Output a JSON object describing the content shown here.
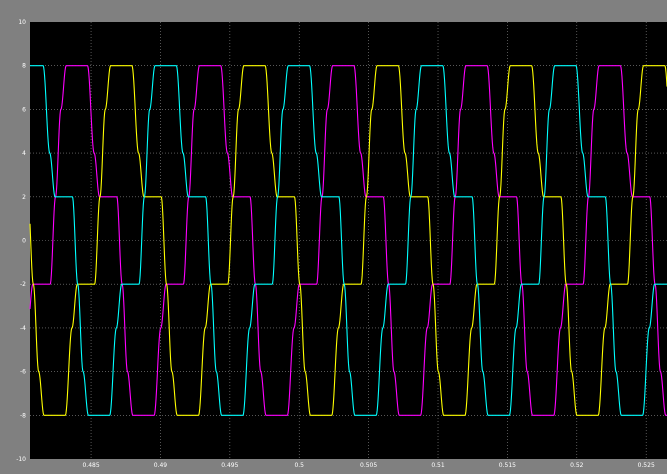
{
  "window": {
    "background": "#808080",
    "plot_background": "#000000",
    "grid_color": "#8c8c8c"
  },
  "chart_data": {
    "type": "line",
    "xlim": [
      0.4806,
      0.5265
    ],
    "ylim": [
      -10,
      10
    ],
    "grid": true,
    "xticks": [
      {
        "value": 0.485,
        "label": "0.485"
      },
      {
        "value": 0.49,
        "label": "0.49"
      },
      {
        "value": 0.495,
        "label": "0.495"
      },
      {
        "value": 0.5,
        "label": "0.5"
      },
      {
        "value": 0.505,
        "label": "0.505"
      },
      {
        "value": 0.51,
        "label": "0.51"
      },
      {
        "value": 0.515,
        "label": "0.515"
      },
      {
        "value": 0.52,
        "label": "0.52"
      },
      {
        "value": 0.525,
        "label": "0.525"
      }
    ],
    "yticks": [
      {
        "value": 10,
        "label": "10"
      },
      {
        "value": 8,
        "label": "8"
      },
      {
        "value": 6,
        "label": "6"
      },
      {
        "value": 4,
        "label": "4"
      },
      {
        "value": 2,
        "label": "2"
      },
      {
        "value": 0,
        "label": "0"
      },
      {
        "value": -2,
        "label": "-2"
      },
      {
        "value": -4,
        "label": "-4"
      },
      {
        "value": -6,
        "label": "-6"
      },
      {
        "value": -8,
        "label": "-8"
      },
      {
        "value": -10,
        "label": "-10"
      }
    ],
    "period": 0.0096,
    "series": [
      {
        "color": "#ff00ff",
        "phase": 0.4834
      },
      {
        "color": "#ffff00",
        "phase": 0.4866
      },
      {
        "color": "#00ffff",
        "phase": 0.4898
      }
    ],
    "waveform": [
      {
        "p": 0.0,
        "v": 8
      },
      {
        "p": 0.14,
        "v": 8
      },
      {
        "p": 0.19,
        "v": 4
      },
      {
        "p": 0.23,
        "v": 2
      },
      {
        "p": 0.36,
        "v": 2
      },
      {
        "p": 0.4,
        "v": -2
      },
      {
        "p": 0.44,
        "v": -6
      },
      {
        "p": 0.48,
        "v": -8
      },
      {
        "p": 0.64,
        "v": -8
      },
      {
        "p": 0.69,
        "v": -4
      },
      {
        "p": 0.73,
        "v": -2
      },
      {
        "p": 0.86,
        "v": -2
      },
      {
        "p": 0.9,
        "v": 2
      },
      {
        "p": 0.94,
        "v": 6
      },
      {
        "p": 0.98,
        "v": 8
      },
      {
        "p": 1.0,
        "v": 8
      }
    ]
  }
}
